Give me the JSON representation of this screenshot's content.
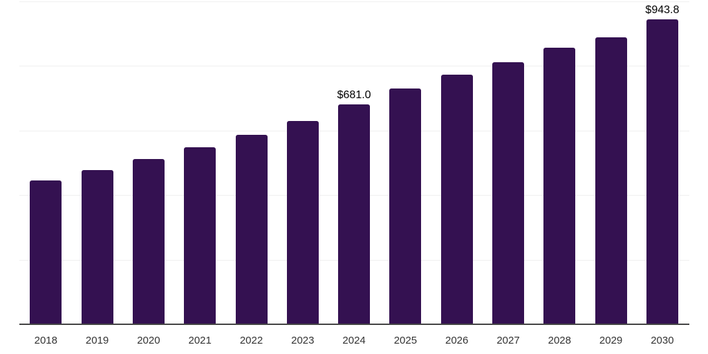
{
  "chart_data": {
    "type": "bar",
    "title": "",
    "xlabel": "",
    "ylabel": "",
    "categories": [
      "2018",
      "2019",
      "2020",
      "2021",
      "2022",
      "2023",
      "2024",
      "2025",
      "2026",
      "2027",
      "2028",
      "2029",
      "2030"
    ],
    "values": [
      446,
      478,
      512,
      549,
      587,
      630,
      681.0,
      731,
      772,
      812,
      856,
      889,
      943.8
    ],
    "value_labels": [
      null,
      null,
      null,
      null,
      null,
      null,
      "$681.0",
      null,
      null,
      null,
      null,
      null,
      "$943.8"
    ],
    "ylim": [
      0,
      1000
    ],
    "grid_step": 200,
    "grid": "horizontal",
    "legend": "none",
    "colors": {
      "bar": "#341151",
      "gridline": "#f0f0f0",
      "axis_line": "#454545",
      "x_tick_label": "#333333",
      "value_label": "#000000"
    }
  }
}
